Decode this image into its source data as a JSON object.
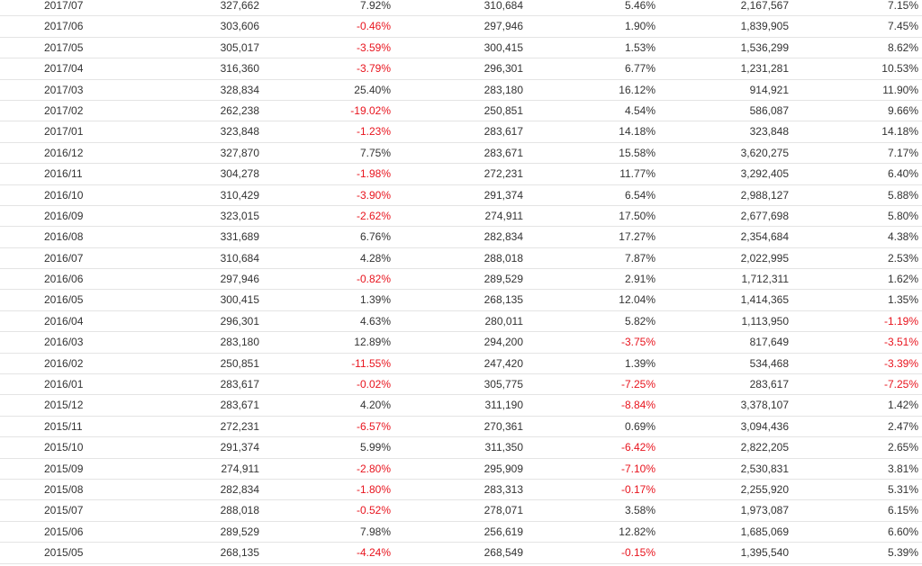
{
  "table": {
    "rows": [
      [
        "2017/07",
        "327,662",
        "7.92%",
        "310,684",
        "5.46%",
        "2,167,567",
        "7.15%"
      ],
      [
        "2017/06",
        "303,606",
        "-0.46%",
        "297,946",
        "1.90%",
        "1,839,905",
        "7.45%"
      ],
      [
        "2017/05",
        "305,017",
        "-3.59%",
        "300,415",
        "1.53%",
        "1,536,299",
        "8.62%"
      ],
      [
        "2017/04",
        "316,360",
        "-3.79%",
        "296,301",
        "6.77%",
        "1,231,281",
        "10.53%"
      ],
      [
        "2017/03",
        "328,834",
        "25.40%",
        "283,180",
        "16.12%",
        "914,921",
        "11.90%"
      ],
      [
        "2017/02",
        "262,238",
        "-19.02%",
        "250,851",
        "4.54%",
        "586,087",
        "9.66%"
      ],
      [
        "2017/01",
        "323,848",
        "-1.23%",
        "283,617",
        "14.18%",
        "323,848",
        "14.18%"
      ],
      [
        "2016/12",
        "327,870",
        "7.75%",
        "283,671",
        "15.58%",
        "3,620,275",
        "7.17%"
      ],
      [
        "2016/11",
        "304,278",
        "-1.98%",
        "272,231",
        "11.77%",
        "3,292,405",
        "6.40%"
      ],
      [
        "2016/10",
        "310,429",
        "-3.90%",
        "291,374",
        "6.54%",
        "2,988,127",
        "5.88%"
      ],
      [
        "2016/09",
        "323,015",
        "-2.62%",
        "274,911",
        "17.50%",
        "2,677,698",
        "5.80%"
      ],
      [
        "2016/08",
        "331,689",
        "6.76%",
        "282,834",
        "17.27%",
        "2,354,684",
        "4.38%"
      ],
      [
        "2016/07",
        "310,684",
        "4.28%",
        "288,018",
        "7.87%",
        "2,022,995",
        "2.53%"
      ],
      [
        "2016/06",
        "297,946",
        "-0.82%",
        "289,529",
        "2.91%",
        "1,712,311",
        "1.62%"
      ],
      [
        "2016/05",
        "300,415",
        "1.39%",
        "268,135",
        "12.04%",
        "1,414,365",
        "1.35%"
      ],
      [
        "2016/04",
        "296,301",
        "4.63%",
        "280,011",
        "5.82%",
        "1,113,950",
        "-1.19%"
      ],
      [
        "2016/03",
        "283,180",
        "12.89%",
        "294,200",
        "-3.75%",
        "817,649",
        "-3.51%"
      ],
      [
        "2016/02",
        "250,851",
        "-11.55%",
        "247,420",
        "1.39%",
        "534,468",
        "-3.39%"
      ],
      [
        "2016/01",
        "283,617",
        "-0.02%",
        "305,775",
        "-7.25%",
        "283,617",
        "-7.25%"
      ],
      [
        "2015/12",
        "283,671",
        "4.20%",
        "311,190",
        "-8.84%",
        "3,378,107",
        "1.42%"
      ],
      [
        "2015/11",
        "272,231",
        "-6.57%",
        "270,361",
        "0.69%",
        "3,094,436",
        "2.47%"
      ],
      [
        "2015/10",
        "291,374",
        "5.99%",
        "311,350",
        "-6.42%",
        "2,822,205",
        "2.65%"
      ],
      [
        "2015/09",
        "274,911",
        "-2.80%",
        "295,909",
        "-7.10%",
        "2,530,831",
        "3.81%"
      ],
      [
        "2015/08",
        "282,834",
        "-1.80%",
        "283,313",
        "-0.17%",
        "2,255,920",
        "5.31%"
      ],
      [
        "2015/07",
        "288,018",
        "-0.52%",
        "278,071",
        "3.58%",
        "1,973,087",
        "6.15%"
      ],
      [
        "2015/06",
        "289,529",
        "7.98%",
        "256,619",
        "12.82%",
        "1,685,069",
        "6.60%"
      ],
      [
        "2015/05",
        "268,135",
        "-4.24%",
        "268,549",
        "-0.15%",
        "1,395,540",
        "5.39%"
      ]
    ]
  },
  "colors": {
    "text": "#333333",
    "negative": "#e8141e",
    "row_border": "#e4e4e4"
  }
}
